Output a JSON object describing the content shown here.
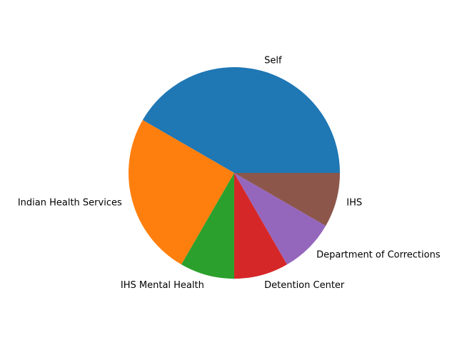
{
  "chart_data": {
    "type": "pie",
    "title": "",
    "categories": [
      "Self",
      "Indian Health Services",
      "IHS Mental Health",
      "Detention Center",
      "Department of Corrections",
      "IHS"
    ],
    "values": [
      5,
      3,
      1,
      1,
      1,
      1
    ],
    "colors": [
      "#1f77b4",
      "#ff7f0e",
      "#2ca02c",
      "#d62728",
      "#9467bd",
      "#8c564b"
    ],
    "start_angle_deg": 0,
    "direction": "counterclockwise",
    "legend": "none"
  }
}
